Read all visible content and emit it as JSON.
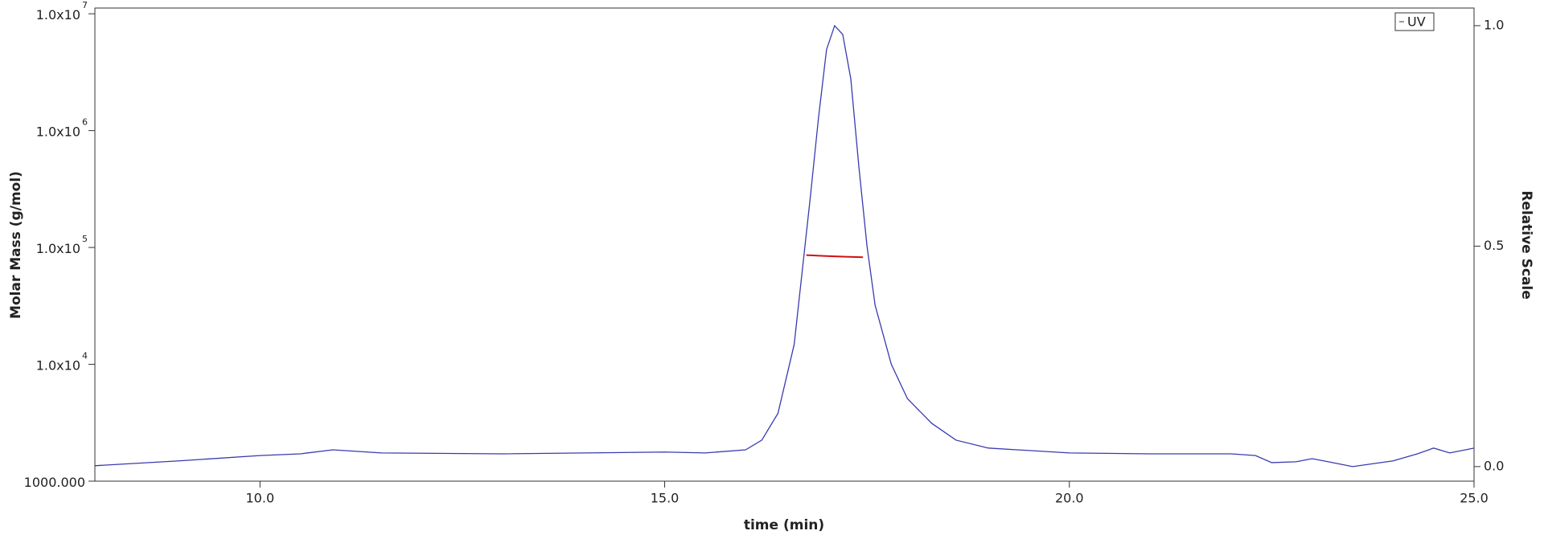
{
  "chart_data": {
    "type": "line",
    "xlabel": "time (min)",
    "ylabel": "Molar Mass (g/mol)",
    "y2label": "Relative Scale",
    "xlim": [
      7.96,
      25.0
    ],
    "xticks": [
      {
        "value": 10,
        "label": "10.0"
      },
      {
        "value": 15,
        "label": "15.0"
      },
      {
        "value": 20,
        "label": "20.0"
      },
      {
        "value": 25,
        "label": "25.0"
      }
    ],
    "ylim": [
      1000,
      11200000
    ],
    "yscale": "log",
    "yticks": [
      {
        "value": 1000,
        "label": "1000.000"
      },
      {
        "value": 10000,
        "label": "1.0x10",
        "exponent": "4"
      },
      {
        "value": 100000,
        "label": "1.0x10",
        "exponent": "5"
      },
      {
        "value": 1000000,
        "label": "1.0x10",
        "exponent": "6"
      },
      {
        "value": 10000000,
        "label": "1.0x10",
        "exponent": "7"
      }
    ],
    "y2lim": [
      -0.033,
      1.04
    ],
    "y2ticks": [
      {
        "value": 0,
        "label": "0.0"
      },
      {
        "value": 0.5,
        "label": "0.5"
      },
      {
        "value": 1,
        "label": "1.0"
      }
    ],
    "legend": "upper right",
    "series": [
      {
        "name": "UV",
        "color": "#3a3ab0",
        "axis": "y2",
        "x": [
          7.96,
          9,
          10,
          10.5,
          10.9,
          11.5,
          13,
          15,
          15.5,
          16.0,
          16.2,
          16.4,
          16.6,
          16.8,
          16.9,
          17.0,
          17.1,
          17.2,
          17.3,
          17.4,
          17.5,
          17.6,
          17.8,
          18.0,
          18.3,
          18.6,
          19,
          20,
          21,
          22,
          22.3,
          22.5,
          22.8,
          23.0,
          23.2,
          23.5,
          24,
          24.3,
          24.5,
          24.7,
          25.0
        ],
        "values": [
          0.002,
          0.013,
          0.025,
          0.029,
          0.038,
          0.031,
          0.029,
          0.033,
          0.031,
          0.038,
          0.06,
          0.121,
          0.277,
          0.612,
          0.79,
          0.946,
          1.0,
          0.98,
          0.879,
          0.679,
          0.5,
          0.366,
          0.232,
          0.154,
          0.098,
          0.06,
          0.042,
          0.031,
          0.029,
          0.029,
          0.025,
          0.009,
          0.011,
          0.018,
          0.011,
          0.0,
          0.013,
          0.029,
          0.042,
          0.031,
          0.042
        ]
      },
      {
        "color": "#d01010",
        "axis": "y",
        "x": [
          16.75,
          17.0,
          17.2,
          17.45
        ],
        "values": [
          86000,
          84500,
          83500,
          82500
        ]
      }
    ]
  }
}
